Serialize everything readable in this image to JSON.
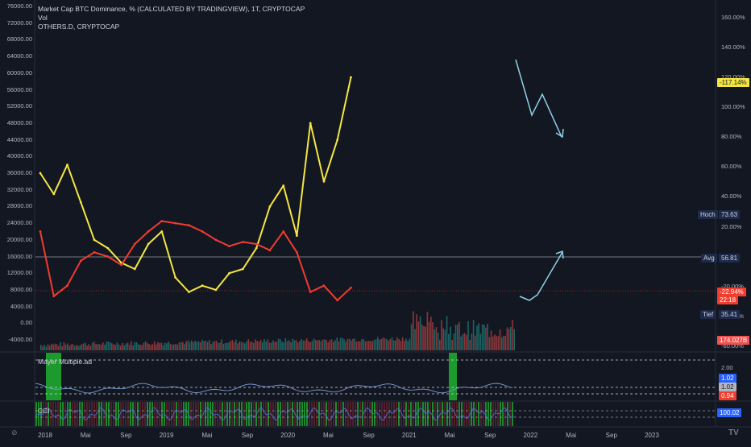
{
  "legend": {
    "line1": "Market Cap BTC Dominance, % (CALCULATED BY TRADINGVIEW), 1T, CRYPTOCAP",
    "line2": "Vol",
    "line3": "OTHERS.D, CRYPTOCAP"
  },
  "panes": {
    "mayer_label": "Mayer Multiple.ad",
    "cci_label": "CCI"
  },
  "left_axis": [
    "76000.00",
    "72000.00",
    "68000.00",
    "64000.00",
    "60000.00",
    "56000.00",
    "52000.00",
    "48000.00",
    "44000.00",
    "40000.00",
    "36000.00",
    "32000.00",
    "28000.00",
    "24000.00",
    "20000.00",
    "16000.00",
    "12000.00",
    "8000.00",
    "4000.00",
    "0.00",
    "-4000.00"
  ],
  "right_axis": [
    "160.00%",
    "140.00%",
    "120.00%",
    "100.00%",
    "80.00%",
    "60.00%",
    "40.00%",
    "20.00%",
    "-20.00%",
    "-40.00%",
    "-60.00%"
  ],
  "mayer_axis": [
    "2.00",
    "1.00"
  ],
  "tags": {
    "yellow_value": "-117.14%",
    "red_value": "-22.94%",
    "red_time": "22:18",
    "hoch_label": "Hoch",
    "hoch_value": "73.63",
    "avg_label": "Avg",
    "avg_value": "56.81",
    "tief_label": "Tief",
    "tief_value": "35.41",
    "vol_value": "174.027B",
    "mayer_v1": "1.02",
    "mayer_v2": "1.02",
    "mayer_v3": "0.94",
    "cci_value": "100.02"
  },
  "x_axis": [
    "2018",
    "Mai",
    "Sep",
    "2019",
    "Mai",
    "Sep",
    "2020",
    "Mai",
    "Sep",
    "2021",
    "Mai",
    "Sep",
    "2022",
    "Mai",
    "Sep",
    "2023"
  ],
  "colors": {
    "background": "#131722",
    "btc_line": "#f5e642",
    "others_line": "#f23c2e",
    "arrow": "#8fd1e8",
    "volume_up": "#26a69a",
    "volume_down": "#ef5350",
    "mayer_line": "#7b9cd6",
    "cci_line": "#4a6fd1",
    "green_band": "#1fa82f",
    "tag_blue": "#1e2a4a"
  },
  "icons": {
    "corner": "timezone-icon",
    "logo": "tradingview-logo-icon"
  },
  "chart_data": {
    "type": "line",
    "x": [
      "2018-01",
      "2018-03",
      "2018-05",
      "2018-07",
      "2018-09",
      "2018-11",
      "2019-01",
      "2019-03",
      "2019-05",
      "2019-07",
      "2019-09",
      "2019-11",
      "2020-01",
      "2020-03",
      "2020-05",
      "2020-07",
      "2020-09",
      "2020-11",
      "2021-01",
      "2021-03",
      "2021-05",
      "2021-07",
      "2021-09",
      "2021-11"
    ],
    "series": [
      {
        "values": [
          36000,
          31000,
          38000,
          29000,
          20000,
          18000,
          14500,
          13000,
          19000,
          22000,
          11000,
          7500,
          9000,
          8000,
          12000,
          13000,
          18000,
          28000,
          33000,
          21000,
          48000,
          34000,
          44000,
          59000
        ]
      },
      {
        "values": [
          22000,
          6500,
          9000,
          15000,
          17000,
          16000,
          14000,
          19000,
          22000,
          24500,
          24000,
          23500,
          22000,
          20000,
          18500,
          19500,
          19000,
          17500,
          22000,
          17000,
          7500,
          9000,
          5500,
          8500
        ]
      }
    ]
  }
}
